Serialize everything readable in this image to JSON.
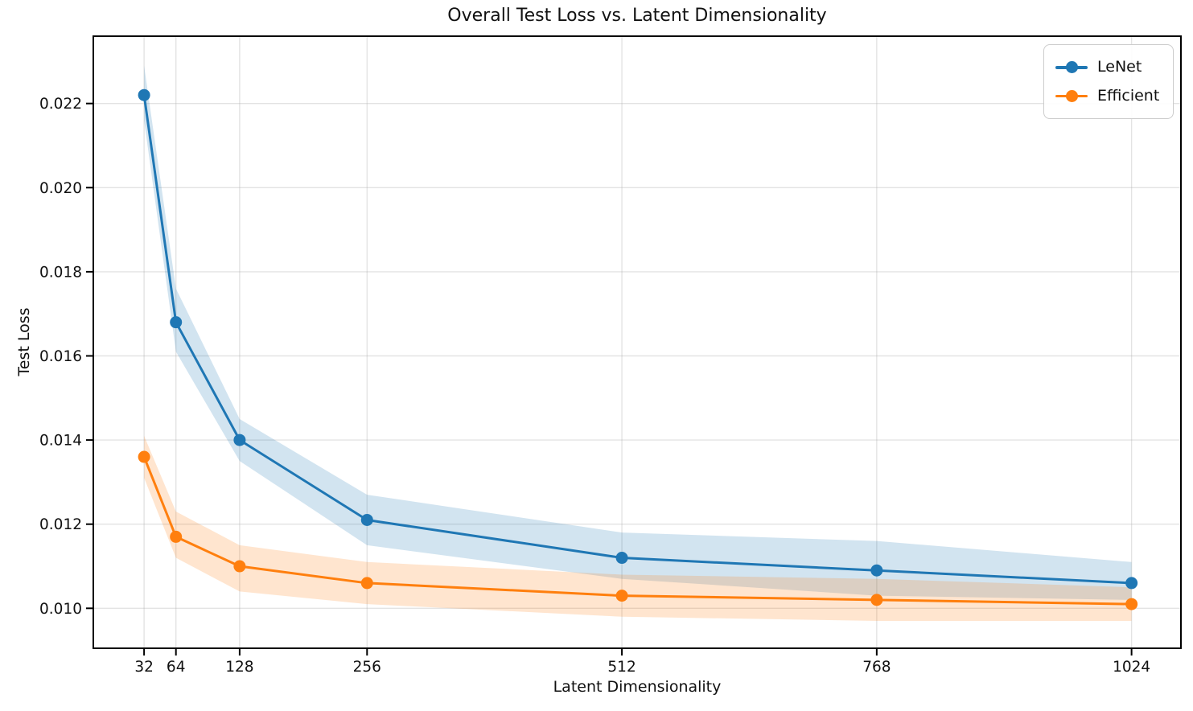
{
  "chart_data": {
    "type": "line",
    "title": "Overall Test Loss vs. Latent Dimensionality",
    "xlabel": "Latent Dimensionality",
    "ylabel": "Test Loss",
    "x": [
      32,
      64,
      128,
      256,
      512,
      768,
      1024
    ],
    "x_tick_labels": [
      "32",
      "64",
      "128",
      "256",
      "512",
      "768",
      "1024"
    ],
    "y_ticks": [
      0.01,
      0.012,
      0.014,
      0.016,
      0.018,
      0.02,
      0.022
    ],
    "y_tick_labels": [
      "0.010",
      "0.012",
      "0.014",
      "0.016",
      "0.018",
      "0.020",
      "0.022"
    ],
    "xlim": [
      -19,
      1073.6
    ],
    "ylim": [
      0.00905,
      0.0236
    ],
    "x_scale": "linear",
    "grid": true,
    "legend_position": "upper right",
    "series": [
      {
        "name": "LeNet",
        "color": "#1f77b4",
        "marker": "circle",
        "values": [
          0.0222,
          0.0168,
          0.014,
          0.0121,
          0.0112,
          0.0109,
          0.0106
        ],
        "band_upper": [
          0.0229,
          0.0176,
          0.0145,
          0.0127,
          0.0118,
          0.0116,
          0.0111
        ],
        "band_lower": [
          0.0216,
          0.0161,
          0.0135,
          0.0115,
          0.0107,
          0.0103,
          0.0102
        ],
        "band_opacity": 0.2
      },
      {
        "name": "Efficient",
        "color": "#ff7f0e",
        "marker": "circle",
        "values": [
          0.0136,
          0.0117,
          0.011,
          0.0106,
          0.0103,
          0.0102,
          0.0101
        ],
        "band_upper": [
          0.0141,
          0.0123,
          0.0115,
          0.0111,
          0.0108,
          0.0107,
          0.0105
        ],
        "band_lower": [
          0.0131,
          0.0112,
          0.0104,
          0.0101,
          0.0098,
          0.0097,
          0.0097
        ],
        "band_opacity": 0.2
      }
    ],
    "style": {
      "grid_color": "#b0b0b0",
      "grid_opacity": 0.35,
      "spine_color": "#000000",
      "text_color": "#111111",
      "background": "#ffffff"
    }
  }
}
